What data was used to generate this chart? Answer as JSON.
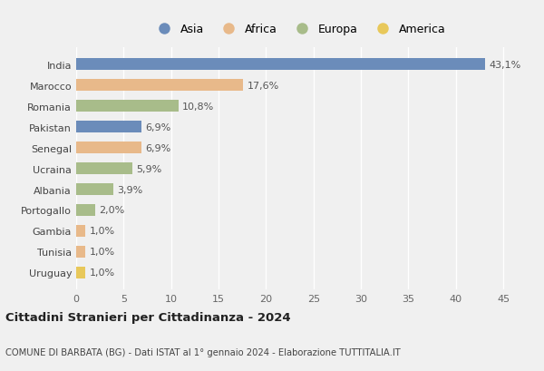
{
  "countries": [
    "India",
    "Marocco",
    "Romania",
    "Pakistan",
    "Senegal",
    "Ucraina",
    "Albania",
    "Portogallo",
    "Gambia",
    "Tunisia",
    "Uruguay"
  ],
  "values": [
    43.1,
    17.6,
    10.8,
    6.9,
    6.9,
    5.9,
    3.9,
    2.0,
    1.0,
    1.0,
    1.0
  ],
  "labels": [
    "43,1%",
    "17,6%",
    "10,8%",
    "6,9%",
    "6,9%",
    "5,9%",
    "3,9%",
    "2,0%",
    "1,0%",
    "1,0%",
    "1,0%"
  ],
  "colors": [
    "#6b8cba",
    "#e8b98a",
    "#a8bc8a",
    "#6b8cba",
    "#e8b98a",
    "#a8bc8a",
    "#a8bc8a",
    "#a8bc8a",
    "#e8b98a",
    "#e8b98a",
    "#e8c85a"
  ],
  "legend_labels": [
    "Asia",
    "Africa",
    "Europa",
    "America"
  ],
  "legend_colors": [
    "#6b8cba",
    "#e8b98a",
    "#a8bc8a",
    "#e8c85a"
  ],
  "xlim": [
    0,
    47
  ],
  "xticks": [
    0,
    5,
    10,
    15,
    20,
    25,
    30,
    35,
    40,
    45
  ],
  "title": "Cittadini Stranieri per Cittadinanza - 2024",
  "subtitle": "COMUNE DI BARBATA (BG) - Dati ISTAT al 1° gennaio 2024 - Elaborazione TUTTITALIA.IT",
  "bg_color": "#f0f0f0",
  "bar_height": 0.55,
  "label_fontsize": 8,
  "tick_fontsize": 8,
  "ytick_fontsize": 8
}
